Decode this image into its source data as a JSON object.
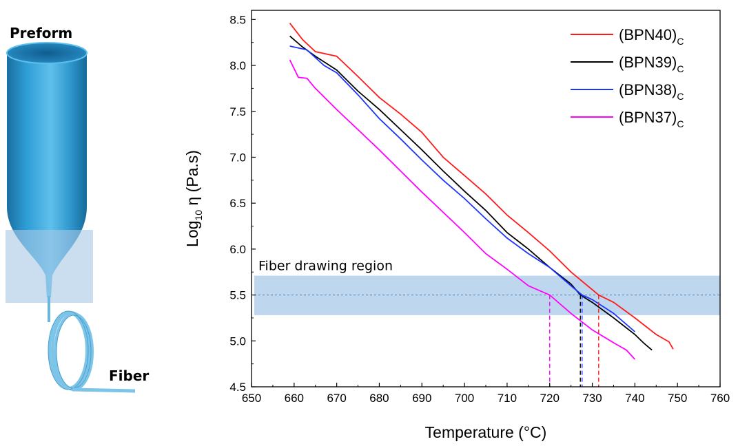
{
  "schematic": {
    "preform_label": "Preform",
    "fiber_label": "Fiber"
  },
  "chart_data": {
    "type": "line",
    "xlabel": "Temperature (°C)",
    "ylabel_main": "Log",
    "ylabel_sub": "10",
    "ylabel_rest": " η (Pa.s)",
    "xlim": [
      650,
      760
    ],
    "ylim": [
      4.5,
      8.6
    ],
    "xticks": [
      650,
      660,
      670,
      680,
      690,
      700,
      710,
      720,
      730,
      740,
      750,
      760
    ],
    "yticks": [
      4.5,
      5.0,
      5.5,
      6.0,
      6.5,
      7.0,
      7.5,
      8.0,
      8.5
    ],
    "ytick_labels": [
      "4.5",
      "5.0",
      "5.5",
      "6.0",
      "6.5",
      "7.0",
      "7.5",
      "8.0",
      "8.5"
    ],
    "grid": false,
    "legend_position": "top-right",
    "region": {
      "label": "Fiber drawing region",
      "y_range": [
        5.28,
        5.71
      ],
      "reference_y": 5.5
    },
    "series": [
      {
        "name": "(BPN40)",
        "name_sub": "C",
        "color": "#ff1a1a",
        "intersect_x": 731.5,
        "points": [
          [
            659,
            8.46
          ],
          [
            662,
            8.28
          ],
          [
            665,
            8.15
          ],
          [
            670,
            8.1
          ],
          [
            675,
            7.88
          ],
          [
            680,
            7.65
          ],
          [
            685,
            7.47
          ],
          [
            690,
            7.27
          ],
          [
            695,
            7.0
          ],
          [
            700,
            6.8
          ],
          [
            705,
            6.6
          ],
          [
            710,
            6.37
          ],
          [
            715,
            6.18
          ],
          [
            720,
            5.98
          ],
          [
            725,
            5.75
          ],
          [
            731.5,
            5.5
          ],
          [
            735,
            5.42
          ],
          [
            740,
            5.25
          ],
          [
            745,
            5.07
          ],
          [
            748,
            4.99
          ],
          [
            749,
            4.91
          ]
        ]
      },
      {
        "name": "(BPN39)",
        "name_sub": "C",
        "color": "#000000",
        "intersect_x": 727.2,
        "points": [
          [
            659,
            8.32
          ],
          [
            662,
            8.2
          ],
          [
            665,
            8.1
          ],
          [
            670,
            7.95
          ],
          [
            675,
            7.72
          ],
          [
            680,
            7.52
          ],
          [
            685,
            7.3
          ],
          [
            690,
            7.08
          ],
          [
            695,
            6.85
          ],
          [
            700,
            6.63
          ],
          [
            705,
            6.42
          ],
          [
            710,
            6.18
          ],
          [
            715,
            6.0
          ],
          [
            720,
            5.8
          ],
          [
            725,
            5.62
          ],
          [
            727.2,
            5.5
          ],
          [
            730,
            5.42
          ],
          [
            735,
            5.25
          ],
          [
            740,
            5.07
          ],
          [
            742,
            4.98
          ],
          [
            744,
            4.9
          ]
        ]
      },
      {
        "name": "(BPN38)",
        "name_sub": "C",
        "color": "#1a33ff",
        "intersect_x": 727.6,
        "points": [
          [
            659,
            8.21
          ],
          [
            663,
            8.17
          ],
          [
            667,
            8.0
          ],
          [
            670,
            7.92
          ],
          [
            675,
            7.68
          ],
          [
            680,
            7.42
          ],
          [
            685,
            7.2
          ],
          [
            690,
            6.97
          ],
          [
            695,
            6.75
          ],
          [
            700,
            6.55
          ],
          [
            705,
            6.33
          ],
          [
            710,
            6.12
          ],
          [
            715,
            5.95
          ],
          [
            720,
            5.8
          ],
          [
            725,
            5.6
          ],
          [
            727.6,
            5.5
          ],
          [
            730,
            5.45
          ],
          [
            735,
            5.3
          ],
          [
            740,
            5.1
          ]
        ]
      },
      {
        "name": "(BPN37)",
        "name_sub": "C",
        "color": "#ff00ff",
        "intersect_x": 720.0,
        "points": [
          [
            659,
            8.06
          ],
          [
            661,
            7.87
          ],
          [
            663,
            7.86
          ],
          [
            665,
            7.75
          ],
          [
            670,
            7.52
          ],
          [
            675,
            7.3
          ],
          [
            680,
            7.08
          ],
          [
            685,
            6.85
          ],
          [
            690,
            6.62
          ],
          [
            695,
            6.4
          ],
          [
            700,
            6.18
          ],
          [
            705,
            5.95
          ],
          [
            710,
            5.78
          ],
          [
            715,
            5.6
          ],
          [
            720,
            5.5
          ],
          [
            725,
            5.3
          ],
          [
            730,
            5.12
          ],
          [
            735,
            4.98
          ],
          [
            738,
            4.9
          ],
          [
            740,
            4.8
          ]
        ]
      }
    ]
  }
}
